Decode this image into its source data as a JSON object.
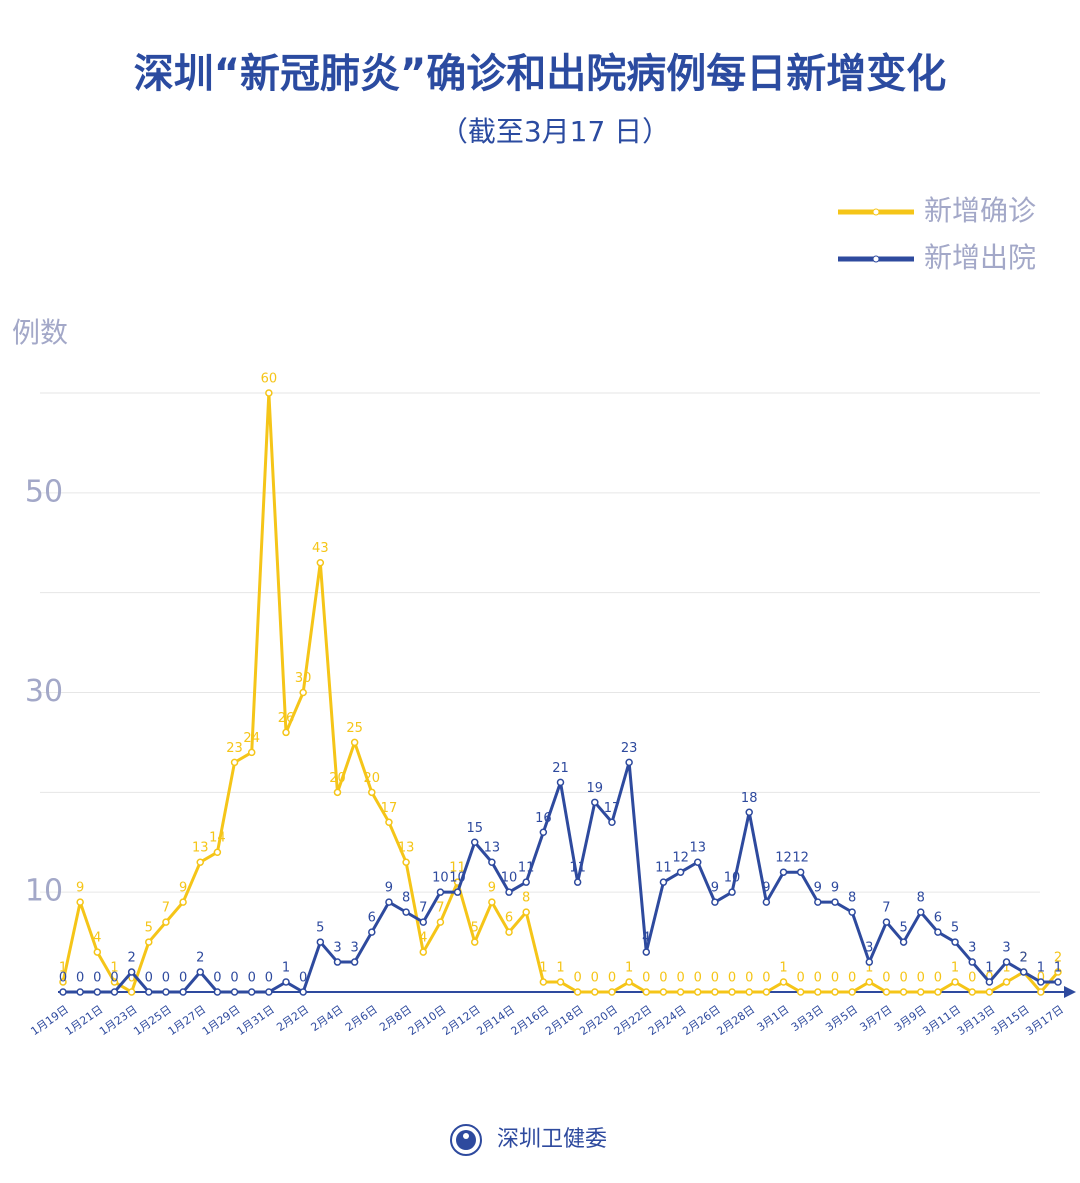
{
  "chart_data": {
    "type": "line",
    "title": "深圳“新冠肺炎”确诊和出院病例每日新增变化",
    "subtitle": "（截至3月17 日）",
    "y_label": "例数",
    "footer": "深圳卫健委",
    "categories": [
      "1月19日",
      null,
      "1月21日",
      null,
      "1月23日",
      null,
      "1月25日",
      null,
      "1月27日",
      null,
      "1月29日",
      null,
      "1月31日",
      null,
      "2月2日",
      null,
      "2月4日",
      null,
      "2月6日",
      null,
      "2月8日",
      null,
      "2月10日",
      null,
      "2月12日",
      null,
      "2月14日",
      null,
      "2月16日",
      null,
      "2月18日",
      null,
      "2月20日",
      null,
      "2月22日",
      null,
      "2月24日",
      null,
      "2月26日",
      null,
      "2月28日",
      null,
      "3月1日",
      null,
      "3月3日",
      null,
      "3月5日",
      null,
      "3月7日",
      null,
      "3月9日",
      null,
      "3月11日",
      null,
      "3月13日",
      null,
      "3月15日",
      null,
      "3月17日"
    ],
    "series": [
      {
        "name": "新增确诊",
        "color": "#f5c518",
        "values": [
          1,
          9,
          4,
          1,
          0,
          5,
          7,
          9,
          13,
          14,
          23,
          24,
          60,
          26,
          30,
          43,
          20,
          25,
          20,
          17,
          13,
          4,
          7,
          11,
          5,
          9,
          6,
          8,
          1,
          1,
          0,
          0,
          0,
          1,
          0,
          0,
          0,
          0,
          0,
          0,
          0,
          0,
          1,
          0,
          0,
          0,
          0,
          1,
          0,
          0,
          0,
          0,
          1,
          0,
          0,
          1,
          2,
          0,
          2
        ]
      },
      {
        "name": "新增出院",
        "color": "#2e4a9e",
        "values": [
          0,
          0,
          0,
          0,
          2,
          0,
          0,
          0,
          2,
          0,
          0,
          0,
          0,
          1,
          0,
          5,
          3,
          3,
          6,
          9,
          8,
          7,
          10,
          10,
          15,
          13,
          10,
          11,
          16,
          21,
          11,
          19,
          17,
          23,
          4,
          11,
          12,
          13,
          9,
          10,
          18,
          9,
          12,
          12,
          9,
          9,
          8,
          3,
          7,
          5,
          8,
          6,
          5,
          3,
          1,
          3,
          2,
          1,
          1
        ]
      }
    ],
    "ylim": [
      0,
      60
    ],
    "yticks": [
      10,
      30,
      50
    ],
    "grid_lines": [
      10,
      20,
      30,
      40,
      50,
      60
    ],
    "grid": true,
    "legend": "upper right"
  }
}
